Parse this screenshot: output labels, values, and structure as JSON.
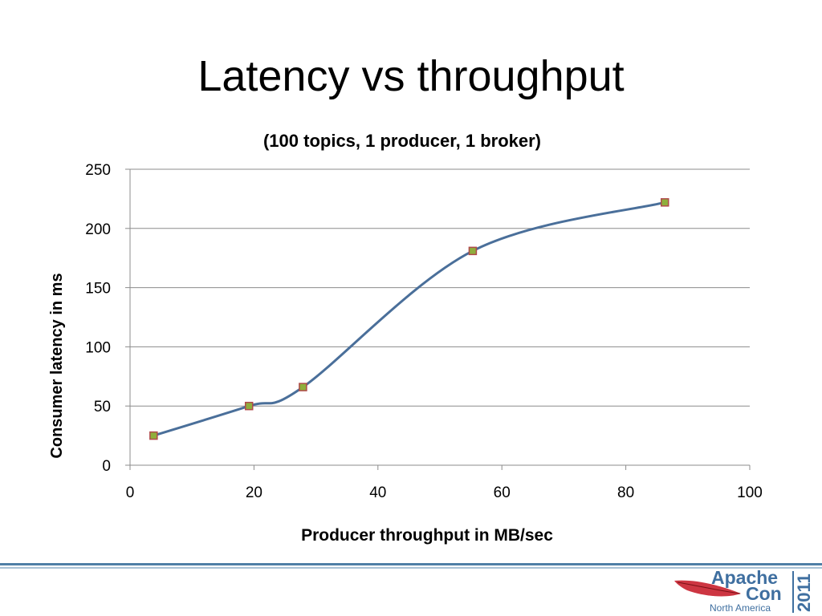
{
  "slide": {
    "title": "Latency vs throughput"
  },
  "chart_data": {
    "type": "line",
    "title": "(100 topics, 1 producer, 1 broker)",
    "xlabel": "Producer throughput in MB/sec",
    "ylabel": "Consumer latency in ms",
    "xlim": [
      0,
      100
    ],
    "ylim": [
      0,
      250
    ],
    "x_ticks": [
      0,
      20,
      40,
      60,
      80,
      100
    ],
    "y_ticks": [
      0,
      50,
      100,
      150,
      200,
      250
    ],
    "grid": "horizontal",
    "smooth": true,
    "line_color": "#4a6f9a",
    "marker_fill": "#8fae3c",
    "marker_stroke": "#b04a4a",
    "series": [
      {
        "x": [
          3.8,
          19.2,
          27.9,
          55.3,
          86.3
        ],
        "y": [
          25,
          50,
          66,
          181,
          222
        ]
      }
    ]
  },
  "logo": {
    "line1": "Apache",
    "line2": "Con",
    "line3": "North America",
    "year": "2011",
    "text_color": "#3f6fa0",
    "feather_color": "#c8202e"
  }
}
